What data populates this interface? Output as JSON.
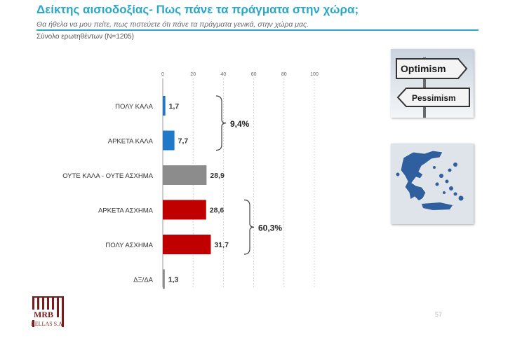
{
  "header": {
    "title": "Δείκτης αισιοδοξίας- Πως πάνε τα πράγματα στην χώρα;",
    "subtitle": "Θα ήθελα να μου πείτε, πως πιστεύετε ότι πάνε τα πράγματα γενικά, στην χώρα μας.",
    "base": "Σύνολο ερωτηθέντων (N=1205)"
  },
  "chart_data": {
    "type": "bar",
    "orientation": "horizontal",
    "categories": [
      "ΠΟΛΥ ΚΑΛΑ",
      "ΑΡΚΕΤΑ ΚΑΛΑ",
      "ΟΥΤΕ ΚΑΛΑ - ΟΥΤΕ ΑΣΧΗΜΑ",
      "ΑΡΚΕΤΑ ΑΣΧΗΜΑ",
      "ΠΟΛΥ ΑΣΧΗΜΑ",
      "ΔΞ/ΔΑ"
    ],
    "values": [
      1.7,
      7.7,
      28.9,
      28.6,
      31.7,
      1.3
    ],
    "value_labels": [
      "1,7",
      "7,7",
      "28,9",
      "28,6",
      "31,7",
      "1,3"
    ],
    "colors": [
      "#1f78c8",
      "#1f78c8",
      "#8c8c8c",
      "#c00000",
      "#c00000",
      "#8c8c8c"
    ],
    "xlim": [
      0,
      100
    ],
    "x_ticks": [
      0,
      20,
      40,
      60,
      80,
      100
    ],
    "x_tick_labels": [
      "0",
      "20",
      "40",
      "60",
      "80",
      "100"
    ],
    "grid": true,
    "groups": [
      {
        "label": "9,4%",
        "members": [
          0,
          1
        ]
      },
      {
        "label": "60,3%",
        "members": [
          3,
          4
        ]
      }
    ]
  },
  "images": {
    "signpost": {
      "top_sign": "Optimism",
      "bottom_sign": "Pessimism"
    },
    "map": {
      "icon": "greece-map-icon"
    }
  },
  "footer": {
    "logo_text": "MRB",
    "company": "HELLAS S.A.",
    "page_number": "57"
  }
}
